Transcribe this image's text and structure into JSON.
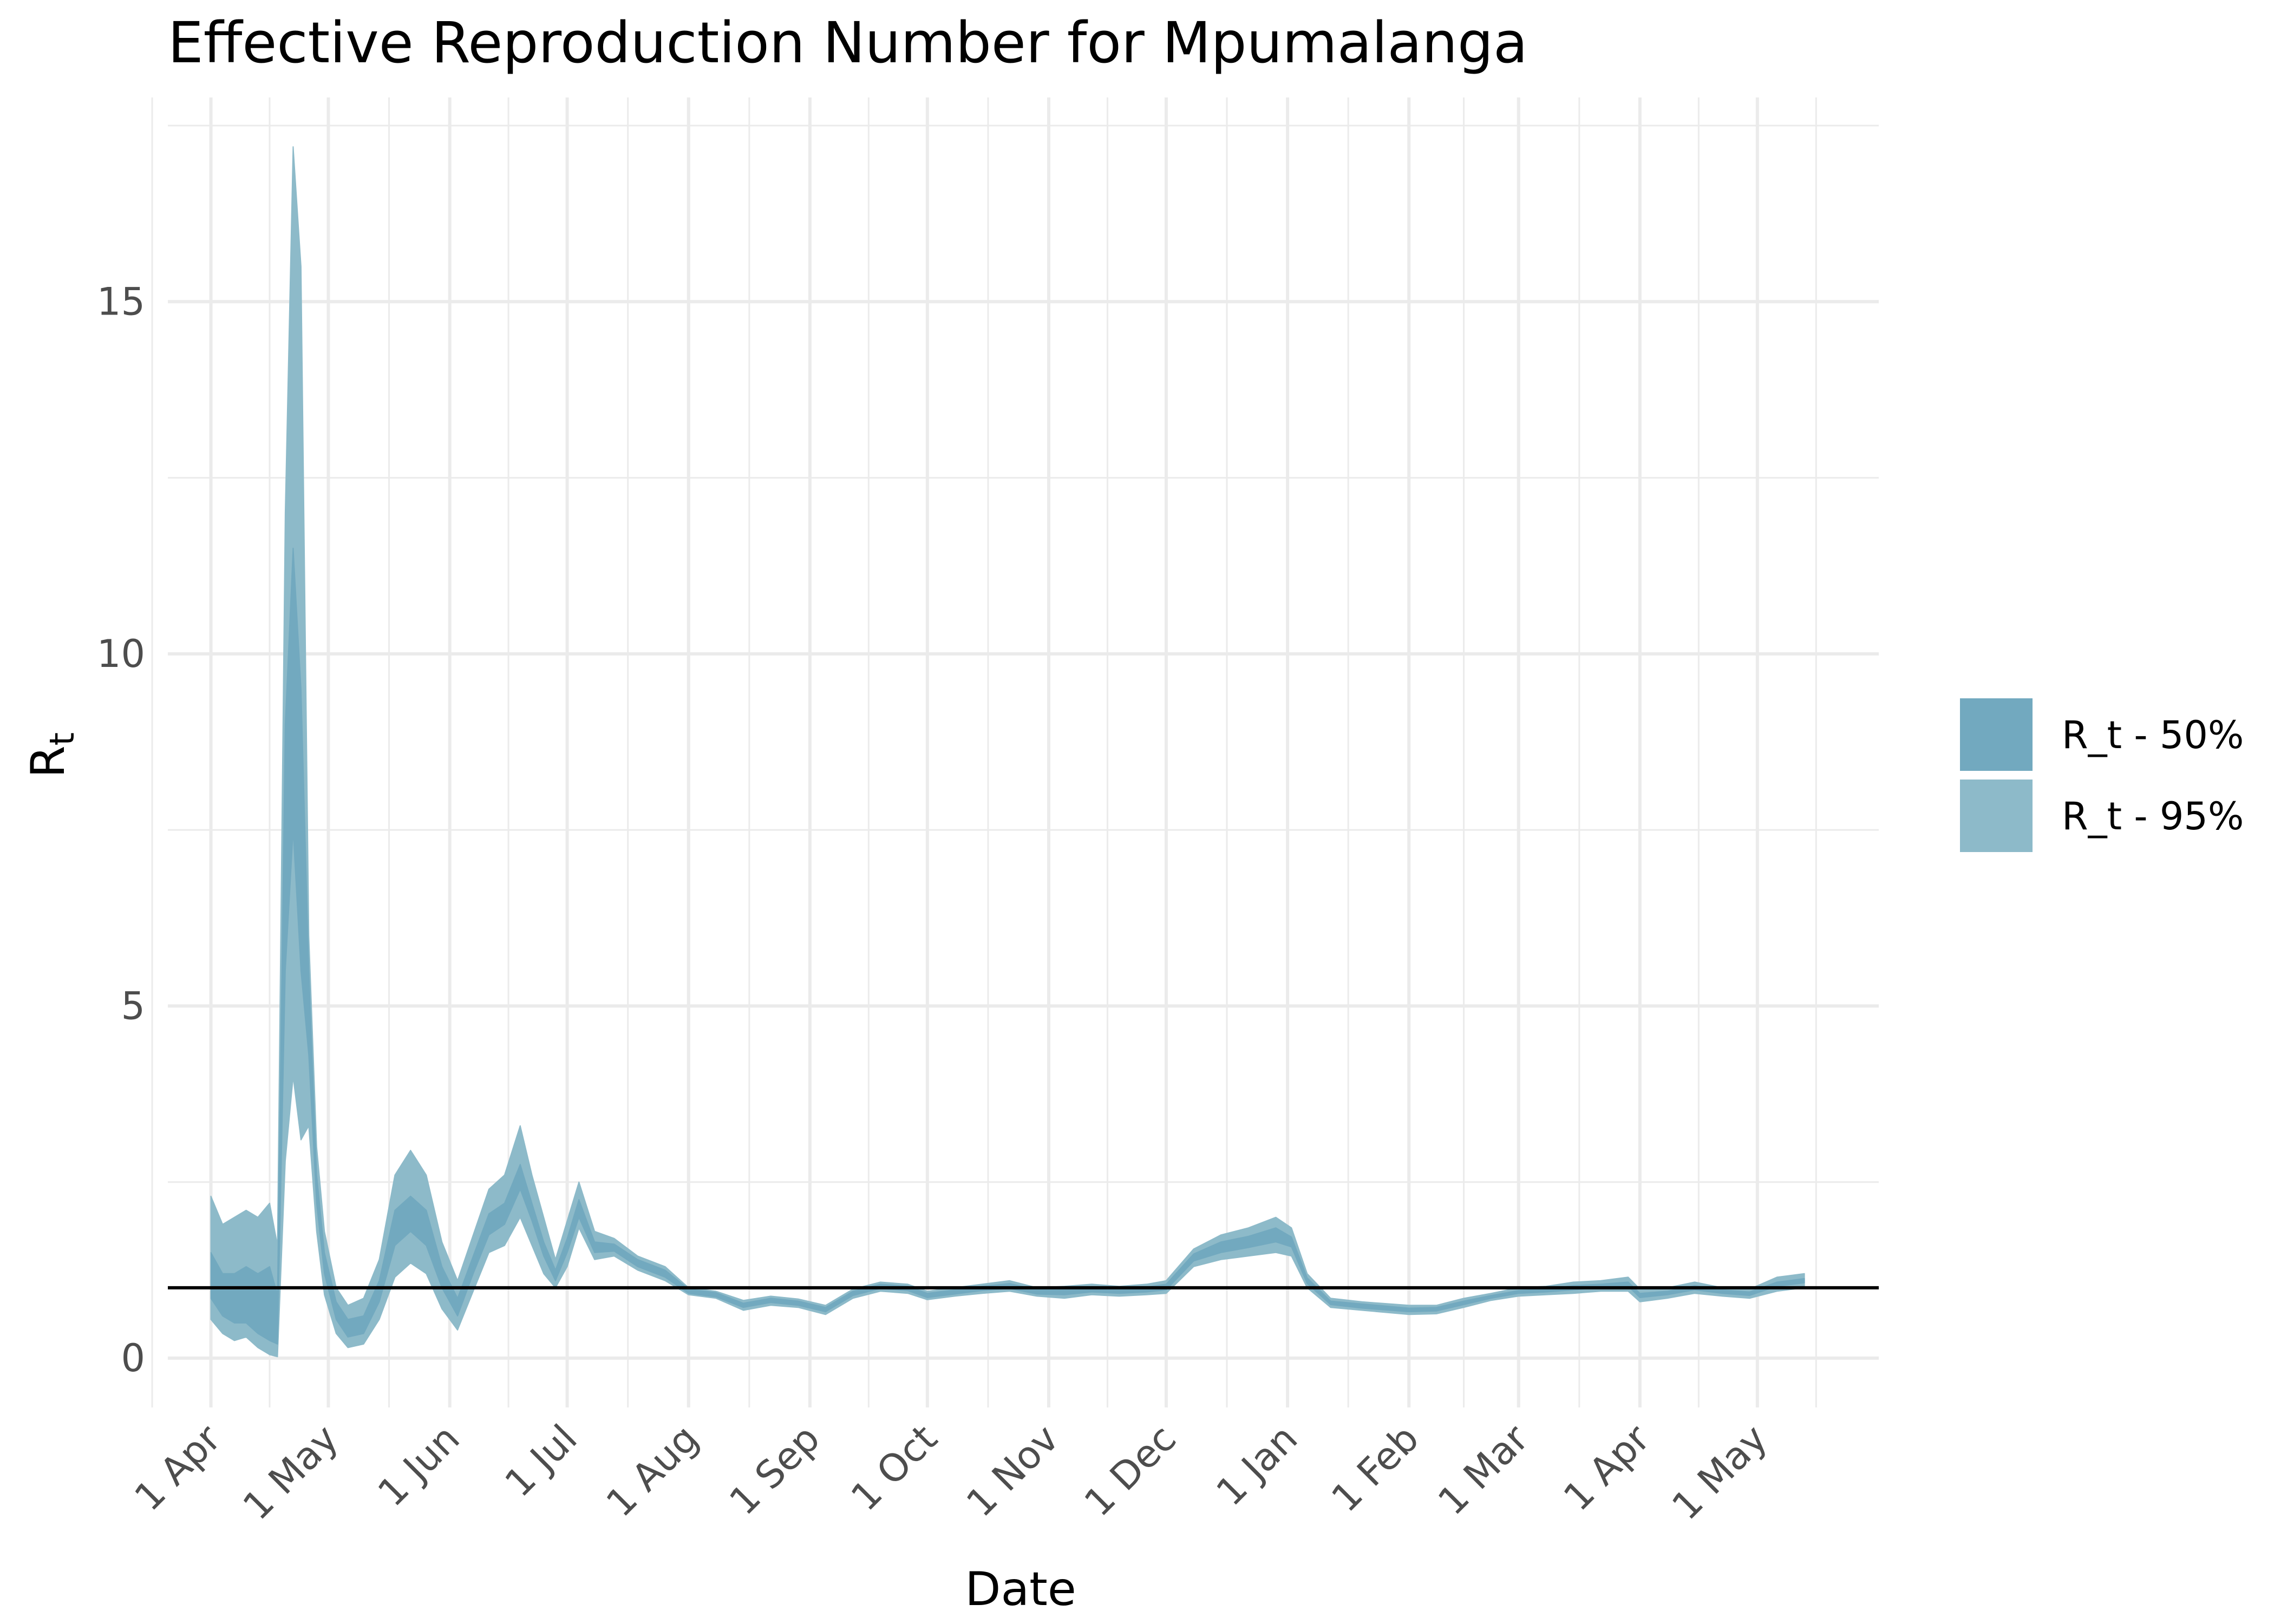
{
  "chart_data": {
    "type": "area",
    "title": "Effective Reproduction Number for Mpumalanga",
    "xlabel": "Date",
    "ylabel": "R",
    "ylabel_sub": "t",
    "xlim": [
      "2020-03-21",
      "2021-06-01"
    ],
    "ylim": [
      -0.7,
      17.9
    ],
    "y_ticks": [
      0,
      5,
      10,
      15
    ],
    "x_ticks": [
      {
        "date": "2020-04-01",
        "label": "1 Apr"
      },
      {
        "date": "2020-05-01",
        "label": "1 May"
      },
      {
        "date": "2020-06-01",
        "label": "1 Jun"
      },
      {
        "date": "2020-07-01",
        "label": "1 Jul"
      },
      {
        "date": "2020-08-01",
        "label": "1 Aug"
      },
      {
        "date": "2020-09-01",
        "label": "1 Sep"
      },
      {
        "date": "2020-10-01",
        "label": "1 Oct"
      },
      {
        "date": "2020-11-01",
        "label": "1 Nov"
      },
      {
        "date": "2020-12-01",
        "label": "1 Dec"
      },
      {
        "date": "2021-01-01",
        "label": "1 Jan"
      },
      {
        "date": "2021-02-01",
        "label": "1 Feb"
      },
      {
        "date": "2021-03-01",
        "label": "1 Mar"
      },
      {
        "date": "2021-04-01",
        "label": "1 Apr"
      },
      {
        "date": "2021-05-01",
        "label": "1 May"
      }
    ],
    "reference_line": 1,
    "grid": true,
    "legend": {
      "position": "right",
      "items": [
        {
          "label": "R_t - 50%",
          "color": "#72a9bf"
        },
        {
          "label": "R_t - 95%",
          "color": "#8dbac9"
        }
      ]
    },
    "series": [
      {
        "name": "R_t - 95%",
        "color": "#8dbac9",
        "band": [
          [
            "2020-04-01",
            0.55,
            2.3
          ],
          [
            "2020-04-04",
            0.35,
            1.9
          ],
          [
            "2020-04-07",
            0.25,
            2.0
          ],
          [
            "2020-04-10",
            0.3,
            2.1
          ],
          [
            "2020-04-13",
            0.15,
            2.0
          ],
          [
            "2020-04-16",
            0.05,
            2.2
          ],
          [
            "2020-04-18",
            0.02,
            1.6
          ],
          [
            "2020-04-20",
            2.8,
            12.0
          ],
          [
            "2020-04-22",
            4.0,
            17.2
          ],
          [
            "2020-04-24",
            3.1,
            15.5
          ],
          [
            "2020-04-26",
            3.3,
            6.0
          ],
          [
            "2020-04-28",
            1.8,
            3.0
          ],
          [
            "2020-04-30",
            0.9,
            1.8
          ],
          [
            "2020-05-03",
            0.35,
            1.0
          ],
          [
            "2020-05-06",
            0.15,
            0.75
          ],
          [
            "2020-05-10",
            0.2,
            0.85
          ],
          [
            "2020-05-14",
            0.55,
            1.4
          ],
          [
            "2020-05-18",
            1.15,
            2.6
          ],
          [
            "2020-05-22",
            1.35,
            2.95
          ],
          [
            "2020-05-26",
            1.2,
            2.6
          ],
          [
            "2020-05-30",
            0.7,
            1.65
          ],
          [
            "2020-06-03",
            0.4,
            1.1
          ],
          [
            "2020-06-07",
            0.95,
            1.75
          ],
          [
            "2020-06-11",
            1.5,
            2.4
          ],
          [
            "2020-06-15",
            1.6,
            2.6
          ],
          [
            "2020-06-19",
            2.0,
            3.3
          ],
          [
            "2020-06-22",
            1.6,
            2.6
          ],
          [
            "2020-06-25",
            1.2,
            2.0
          ],
          [
            "2020-06-28",
            1.0,
            1.4
          ],
          [
            "2020-07-01",
            1.3,
            1.95
          ],
          [
            "2020-07-04",
            1.85,
            2.5
          ],
          [
            "2020-07-08",
            1.4,
            1.8
          ],
          [
            "2020-07-13",
            1.45,
            1.7
          ],
          [
            "2020-07-19",
            1.25,
            1.45
          ],
          [
            "2020-07-26",
            1.1,
            1.3
          ],
          [
            "2020-08-01",
            0.9,
            1.0
          ],
          [
            "2020-08-08",
            0.85,
            0.95
          ],
          [
            "2020-08-15",
            0.68,
            0.82
          ],
          [
            "2020-08-22",
            0.75,
            0.88
          ],
          [
            "2020-08-29",
            0.72,
            0.84
          ],
          [
            "2020-09-05",
            0.62,
            0.75
          ],
          [
            "2020-09-12",
            0.85,
            0.98
          ],
          [
            "2020-09-19",
            0.95,
            1.08
          ],
          [
            "2020-09-26",
            0.92,
            1.05
          ],
          [
            "2020-10-01",
            0.83,
            0.95
          ],
          [
            "2020-10-08",
            0.88,
            1.0
          ],
          [
            "2020-10-15",
            0.92,
            1.05
          ],
          [
            "2020-10-22",
            0.95,
            1.1
          ],
          [
            "2020-10-29",
            0.88,
            1.0
          ],
          [
            "2020-11-05",
            0.85,
            1.02
          ],
          [
            "2020-11-12",
            0.9,
            1.05
          ],
          [
            "2020-11-19",
            0.88,
            1.02
          ],
          [
            "2020-11-26",
            0.9,
            1.05
          ],
          [
            "2020-12-01",
            0.92,
            1.1
          ],
          [
            "2020-12-08",
            1.3,
            1.55
          ],
          [
            "2020-12-15",
            1.4,
            1.75
          ],
          [
            "2020-12-22",
            1.45,
            1.85
          ],
          [
            "2020-12-29",
            1.5,
            2.0
          ],
          [
            "2021-01-02",
            1.45,
            1.85
          ],
          [
            "2021-01-06",
            1.0,
            1.2
          ],
          [
            "2021-01-12",
            0.72,
            0.85
          ],
          [
            "2021-01-20",
            0.68,
            0.8
          ],
          [
            "2021-02-01",
            0.62,
            0.75
          ],
          [
            "2021-02-08",
            0.63,
            0.75
          ],
          [
            "2021-02-15",
            0.72,
            0.85
          ],
          [
            "2021-02-22",
            0.82,
            0.92
          ],
          [
            "2021-03-01",
            0.88,
            1.0
          ],
          [
            "2021-03-08",
            0.9,
            1.02
          ],
          [
            "2021-03-15",
            0.92,
            1.08
          ],
          [
            "2021-03-22",
            0.95,
            1.1
          ],
          [
            "2021-03-29",
            0.95,
            1.15
          ],
          [
            "2021-04-01",
            0.8,
            0.98
          ],
          [
            "2021-04-08",
            0.85,
            1.0
          ],
          [
            "2021-04-15",
            0.92,
            1.08
          ],
          [
            "2021-04-22",
            0.88,
            1.0
          ],
          [
            "2021-04-29",
            0.85,
            0.98
          ],
          [
            "2021-05-06",
            0.95,
            1.15
          ],
          [
            "2021-05-13",
            1.0,
            1.2
          ]
        ]
      },
      {
        "name": "R_t - 50%",
        "color": "#72a9bf",
        "band": [
          [
            "2020-04-01",
            0.85,
            1.5
          ],
          [
            "2020-04-04",
            0.6,
            1.2
          ],
          [
            "2020-04-07",
            0.5,
            1.2
          ],
          [
            "2020-04-10",
            0.5,
            1.3
          ],
          [
            "2020-04-13",
            0.35,
            1.2
          ],
          [
            "2020-04-16",
            0.25,
            1.3
          ],
          [
            "2020-04-18",
            0.2,
            0.9
          ],
          [
            "2020-04-20",
            5.5,
            9.0
          ],
          [
            "2020-04-22",
            7.5,
            11.5
          ],
          [
            "2020-04-24",
            5.5,
            9.5
          ],
          [
            "2020-04-26",
            4.3,
            5.5
          ],
          [
            "2020-04-28",
            2.2,
            2.6
          ],
          [
            "2020-04-30",
            1.2,
            1.5
          ],
          [
            "2020-05-03",
            0.55,
            0.8
          ],
          [
            "2020-05-06",
            0.3,
            0.55
          ],
          [
            "2020-05-10",
            0.35,
            0.6
          ],
          [
            "2020-05-14",
            0.8,
            1.1
          ],
          [
            "2020-05-18",
            1.6,
            2.1
          ],
          [
            "2020-05-22",
            1.8,
            2.3
          ],
          [
            "2020-05-26",
            1.6,
            2.1
          ],
          [
            "2020-05-30",
            1.0,
            1.3
          ],
          [
            "2020-06-03",
            0.6,
            0.85
          ],
          [
            "2020-06-07",
            1.2,
            1.45
          ],
          [
            "2020-06-11",
            1.75,
            2.05
          ],
          [
            "2020-06-15",
            1.9,
            2.2
          ],
          [
            "2020-06-19",
            2.4,
            2.75
          ],
          [
            "2020-06-22",
            1.95,
            2.2
          ],
          [
            "2020-06-25",
            1.45,
            1.65
          ],
          [
            "2020-06-28",
            1.1,
            1.25
          ],
          [
            "2020-07-01",
            1.5,
            1.7
          ],
          [
            "2020-07-04",
            2.0,
            2.25
          ],
          [
            "2020-07-08",
            1.5,
            1.65
          ],
          [
            "2020-07-13",
            1.52,
            1.62
          ],
          [
            "2020-07-19",
            1.3,
            1.4
          ],
          [
            "2020-07-26",
            1.15,
            1.25
          ],
          [
            "2020-08-01",
            0.92,
            0.98
          ],
          [
            "2020-08-08",
            0.87,
            0.93
          ],
          [
            "2020-08-15",
            0.72,
            0.78
          ],
          [
            "2020-08-22",
            0.79,
            0.85
          ],
          [
            "2020-08-29",
            0.75,
            0.81
          ],
          [
            "2020-09-05",
            0.66,
            0.72
          ],
          [
            "2020-09-12",
            0.89,
            0.95
          ],
          [
            "2020-09-19",
            0.99,
            1.05
          ],
          [
            "2020-09-26",
            0.96,
            1.02
          ],
          [
            "2020-10-01",
            0.86,
            0.92
          ],
          [
            "2020-10-08",
            0.91,
            0.97
          ],
          [
            "2020-10-15",
            0.96,
            1.02
          ],
          [
            "2020-10-22",
            0.99,
            1.06
          ],
          [
            "2020-10-29",
            0.91,
            0.97
          ],
          [
            "2020-11-05",
            0.9,
            0.97
          ],
          [
            "2020-11-12",
            0.94,
            1.01
          ],
          [
            "2020-11-19",
            0.92,
            0.98
          ],
          [
            "2020-11-26",
            0.94,
            1.01
          ],
          [
            "2020-12-01",
            0.97,
            1.05
          ],
          [
            "2020-12-08",
            1.38,
            1.48
          ],
          [
            "2020-12-15",
            1.5,
            1.65
          ],
          [
            "2020-12-22",
            1.57,
            1.73
          ],
          [
            "2020-12-29",
            1.65,
            1.85
          ],
          [
            "2021-01-02",
            1.58,
            1.72
          ],
          [
            "2021-01-06",
            1.06,
            1.14
          ],
          [
            "2021-01-12",
            0.76,
            0.81
          ],
          [
            "2021-01-20",
            0.71,
            0.77
          ],
          [
            "2021-02-01",
            0.66,
            0.71
          ],
          [
            "2021-02-08",
            0.67,
            0.72
          ],
          [
            "2021-02-15",
            0.76,
            0.81
          ],
          [
            "2021-02-22",
            0.85,
            0.89
          ],
          [
            "2021-03-01",
            0.92,
            0.96
          ],
          [
            "2021-03-08",
            0.94,
            0.98
          ],
          [
            "2021-03-15",
            0.97,
            1.03
          ],
          [
            "2021-03-22",
            1.0,
            1.05
          ],
          [
            "2021-03-29",
            1.02,
            1.08
          ],
          [
            "2021-04-01",
            0.86,
            0.92
          ],
          [
            "2021-04-08",
            0.9,
            0.95
          ],
          [
            "2021-04-15",
            0.97,
            1.03
          ],
          [
            "2021-04-22",
            0.92,
            0.97
          ],
          [
            "2021-04-29",
            0.89,
            0.94
          ],
          [
            "2021-05-06",
            1.02,
            1.08
          ],
          [
            "2021-05-13",
            1.07,
            1.13
          ]
        ]
      }
    ]
  }
}
